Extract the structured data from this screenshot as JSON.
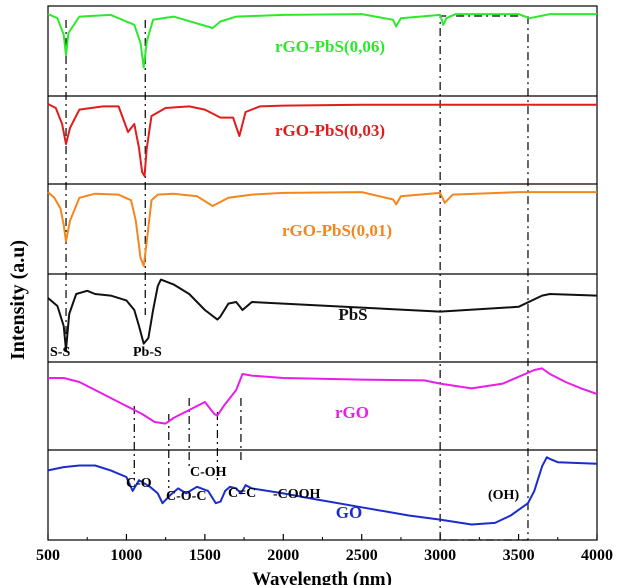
{
  "chart_data": {
    "type": "line",
    "title": "",
    "xlabel": "Wavelength (nm)",
    "ylabel": "Intensity (a.u)",
    "xlim": [
      500,
      4000
    ],
    "x_ticks": [
      500,
      1000,
      1500,
      2000,
      2500,
      3000,
      3500,
      4000
    ],
    "x_tick_labels": [
      "500",
      "1000",
      "1500",
      "2000",
      "2500",
      "3000",
      "3500",
      "4000"
    ],
    "series": [
      {
        "name": "rGO-PbS(0,06)",
        "color": "#2ee82e",
        "panel": 0,
        "ylim": [
          0,
          1
        ],
        "x": [
          500,
          560,
          600,
          615,
          630,
          700,
          900,
          1050,
          1090,
          1110,
          1130,
          1170,
          1300,
          1550,
          1600,
          1700,
          2000,
          2500,
          2700,
          2720,
          2750,
          3000,
          3020,
          3040,
          3100,
          3500,
          3570,
          3700,
          4000
        ],
        "y": [
          0.95,
          0.9,
          0.7,
          0.45,
          0.72,
          0.92,
          0.94,
          0.82,
          0.6,
          0.3,
          0.62,
          0.88,
          0.92,
          0.78,
          0.86,
          0.92,
          0.94,
          0.95,
          0.88,
          0.8,
          0.9,
          0.94,
          0.82,
          0.9,
          0.95,
          0.95,
          0.9,
          0.95,
          0.95
        ]
      },
      {
        "name": "rGO-PbS(0,03)",
        "color": "#e21c1c",
        "panel": 1,
        "ylim": [
          0,
          1
        ],
        "x": [
          500,
          550,
          590,
          615,
          640,
          700,
          850,
          950,
          1010,
          1050,
          1080,
          1100,
          1115,
          1130,
          1160,
          1250,
          1400,
          1500,
          1600,
          1680,
          1720,
          1760,
          1850,
          2000,
          2500,
          3000,
          3500,
          4000
        ],
        "y": [
          0.95,
          0.9,
          0.7,
          0.45,
          0.65,
          0.88,
          0.92,
          0.92,
          0.6,
          0.7,
          0.4,
          0.1,
          0.05,
          0.4,
          0.8,
          0.9,
          0.92,
          0.88,
          0.78,
          0.78,
          0.55,
          0.85,
          0.92,
          0.93,
          0.94,
          0.94,
          0.94,
          0.94
        ]
      },
      {
        "name": "rGO-PbS(0,01)",
        "color": "#f3861c",
        "panel": 2,
        "ylim": [
          0,
          1
        ],
        "x": [
          500,
          540,
          580,
          600,
          615,
          640,
          700,
          800,
          950,
          1030,
          1060,
          1090,
          1110,
          1130,
          1160,
          1200,
          1300,
          1450,
          1550,
          1650,
          1800,
          2000,
          2500,
          2700,
          2720,
          2750,
          3000,
          3030,
          3080,
          3500,
          4000
        ],
        "y": [
          0.95,
          0.88,
          0.75,
          0.55,
          0.35,
          0.6,
          0.88,
          0.93,
          0.92,
          0.85,
          0.6,
          0.15,
          0.05,
          0.35,
          0.85,
          0.92,
          0.93,
          0.9,
          0.78,
          0.88,
          0.92,
          0.94,
          0.95,
          0.86,
          0.8,
          0.9,
          0.94,
          0.82,
          0.92,
          0.95,
          0.95
        ]
      },
      {
        "name": "PbS",
        "color": "#111111",
        "panel": 3,
        "ylim": [
          0,
          1
        ],
        "x": [
          500,
          560,
          600,
          615,
          635,
          680,
          750,
          800,
          900,
          1000,
          1050,
          1080,
          1110,
          1140,
          1170,
          1200,
          1220,
          1300,
          1400,
          1500,
          1580,
          1600,
          1650,
          1700,
          1740,
          1800,
          2000,
          2500,
          3000,
          3500,
          3650,
          3700,
          4000
        ],
        "y": [
          0.75,
          0.65,
          0.4,
          0.1,
          0.55,
          0.8,
          0.84,
          0.8,
          0.78,
          0.72,
          0.6,
          0.4,
          0.18,
          0.25,
          0.6,
          0.9,
          0.98,
          0.92,
          0.8,
          0.6,
          0.48,
          0.52,
          0.68,
          0.7,
          0.6,
          0.7,
          0.68,
          0.63,
          0.58,
          0.64,
          0.78,
          0.8,
          0.78
        ]
      },
      {
        "name": "rGO",
        "color": "#e81ee8",
        "panel": 4,
        "ylim": [
          0,
          1
        ],
        "x": [
          500,
          600,
          700,
          800,
          900,
          1000,
          1100,
          1180,
          1250,
          1300,
          1400,
          1500,
          1560,
          1580,
          1620,
          1700,
          1740,
          1800,
          2000,
          2500,
          2900,
          3000,
          3200,
          3400,
          3600,
          3650,
          3700,
          3800,
          3900,
          4000
        ],
        "y": [
          0.85,
          0.85,
          0.8,
          0.7,
          0.6,
          0.5,
          0.4,
          0.3,
          0.28,
          0.35,
          0.45,
          0.55,
          0.4,
          0.38,
          0.5,
          0.7,
          0.9,
          0.88,
          0.85,
          0.83,
          0.82,
          0.78,
          0.72,
          0.78,
          0.95,
          0.97,
          0.9,
          0.8,
          0.72,
          0.65
        ]
      },
      {
        "name": "GO",
        "color": "#1c2ccc",
        "panel": 5,
        "ylim": [
          0,
          1
        ],
        "x": [
          500,
          600,
          700,
          800,
          900,
          1000,
          1040,
          1080,
          1150,
          1200,
          1230,
          1280,
          1330,
          1380,
          1450,
          1520,
          1570,
          1600,
          1630,
          1660,
          1700,
          1730,
          1760,
          1800,
          2000,
          2200,
          2500,
          2800,
          3000,
          3200,
          3350,
          3450,
          3560,
          3600,
          3650,
          3680,
          3700,
          3750,
          4000
        ],
        "y": [
          0.8,
          0.84,
          0.86,
          0.86,
          0.8,
          0.72,
          0.55,
          0.68,
          0.6,
          0.52,
          0.4,
          0.5,
          0.58,
          0.52,
          0.6,
          0.55,
          0.4,
          0.42,
          0.55,
          0.6,
          0.58,
          0.52,
          0.62,
          0.58,
          0.52,
          0.45,
          0.35,
          0.25,
          0.2,
          0.14,
          0.16,
          0.25,
          0.4,
          0.55,
          0.85,
          0.96,
          0.94,
          0.9,
          0.88
        ]
      }
    ],
    "annotations": [
      {
        "text": "S-S",
        "x": 600,
        "panel": 3
      },
      {
        "text": "Pb-S",
        "x": 1110,
        "panel": 3
      },
      {
        "text": "C-O",
        "x": 1050,
        "panel": 5
      },
      {
        "text": "C-O-C",
        "x": 1270,
        "panel": 5
      },
      {
        "text": "C-OH",
        "x": 1400,
        "panel": 5
      },
      {
        "text": "C=C",
        "x": 1580,
        "panel": 5
      },
      {
        "text": "-COOH",
        "x": 1730,
        "panel": 5
      },
      {
        "text": "(OH)",
        "x": 3280,
        "panel": 5
      }
    ],
    "reference_lines_x": [
      615,
      1120,
      1050,
      1270,
      1400,
      1580,
      1730,
      3000,
      3560
    ],
    "grid": false,
    "legend": "none"
  }
}
